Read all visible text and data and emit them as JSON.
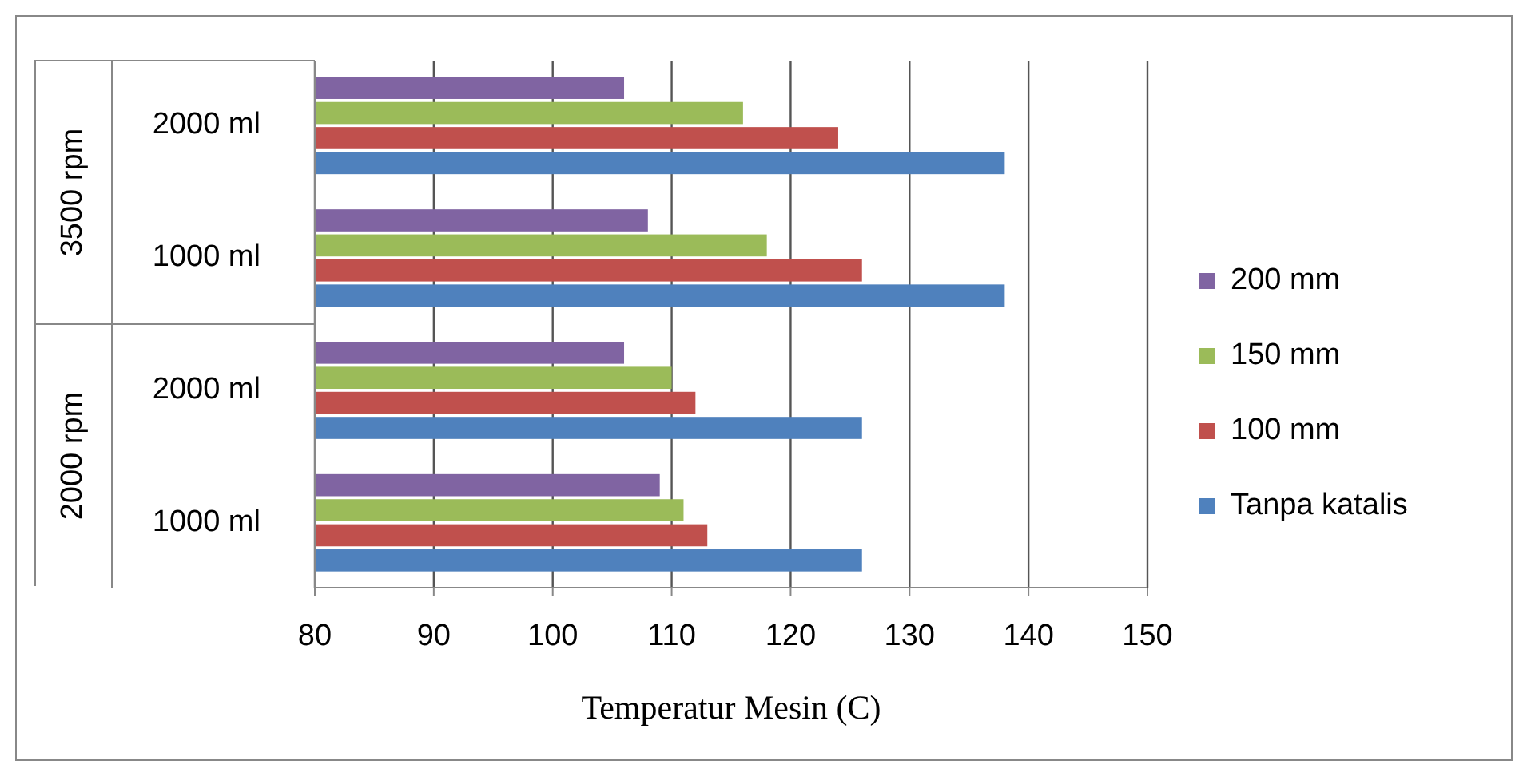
{
  "chart_data": {
    "type": "bar",
    "orientation": "horizontal",
    "xlabel": "Temperatur Mesin (C)",
    "categories": [
      "2000 ml",
      "1000 ml",
      "2000 ml",
      "1000 ml"
    ],
    "annotations": [
      "3500 rpm",
      "2000 rpm"
    ],
    "series": [
      {
        "name": "200 mm",
        "color": "#8064a2",
        "values": [
          106,
          108,
          106,
          109
        ]
      },
      {
        "name": "150 mm",
        "color": "#9bbb59",
        "values": [
          116,
          118,
          110,
          111
        ]
      },
      {
        "name": "100 mm",
        "color": "#c0504d",
        "values": [
          124,
          126,
          112,
          113
        ]
      },
      {
        "name": "Tanpa katalis",
        "color": "#4f81bd",
        "values": [
          138,
          138,
          126,
          126
        ]
      }
    ],
    "xlim": [
      80,
      150
    ],
    "xticks": [
      80,
      90,
      100,
      110,
      120,
      130,
      140,
      150
    ],
    "grid": "x",
    "legend": "right"
  }
}
